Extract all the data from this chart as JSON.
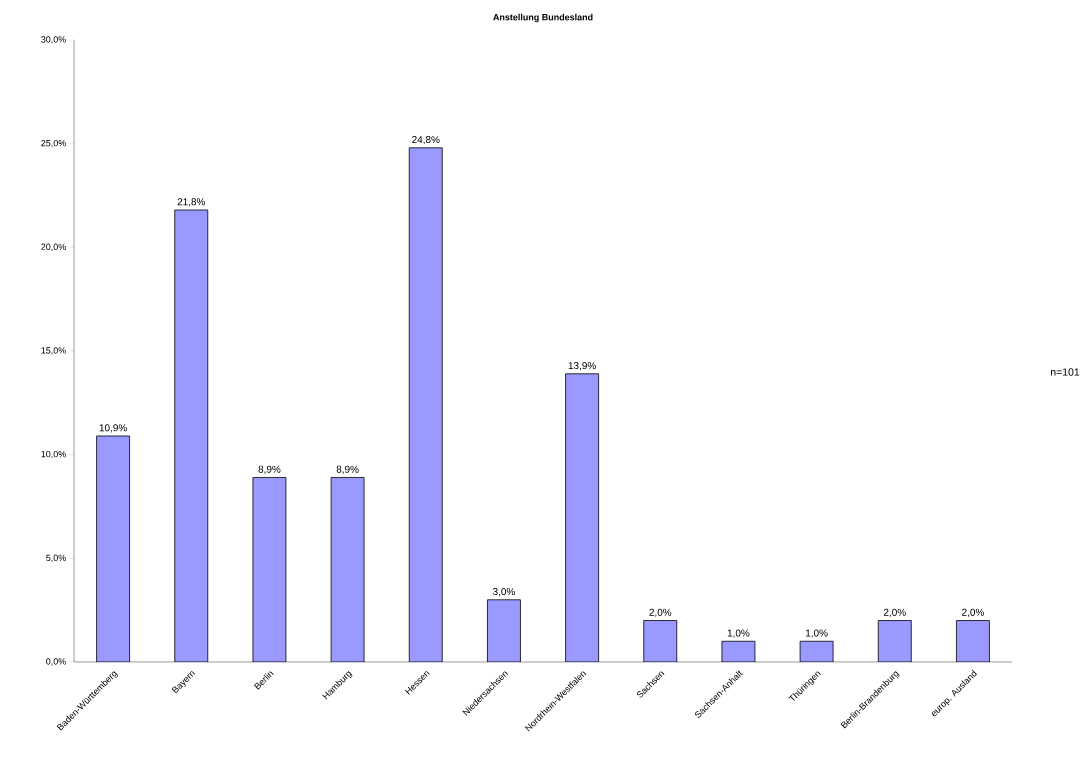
{
  "chart_data": {
    "type": "bar",
    "title": "Anstellung Bundesland",
    "categories": [
      "Baden-Württemberg",
      "Bayern",
      "Berlin",
      "Hamburg",
      "Hessen",
      "Niedersachsen",
      "Nordrhein-Westfalen",
      "Sachsen",
      "Sachsen-Anhalt",
      "Thüringen",
      "Berlin-Brandenburg",
      "europ. Ausland"
    ],
    "values": [
      10.9,
      21.8,
      8.9,
      8.9,
      24.8,
      3.0,
      13.9,
      2.0,
      1.0,
      1.0,
      2.0,
      2.0
    ],
    "value_labels": [
      "10,9%",
      "21,8%",
      "8,9%",
      "8,9%",
      "24,8%",
      "3,0%",
      "13,9%",
      "2,0%",
      "1,0%",
      "1,0%",
      "2,0%",
      "2,0%"
    ],
    "color": "#9999ff",
    "ylim": [
      0,
      30
    ],
    "yticks": [
      {
        "value": 0,
        "label": "0,0%"
      },
      {
        "value": 5,
        "label": "5,0%"
      },
      {
        "value": 10,
        "label": "10,0%"
      },
      {
        "value": 15,
        "label": "15,0%"
      },
      {
        "value": 20,
        "label": "20,0%"
      },
      {
        "value": 25,
        "label": "25,0%"
      },
      {
        "value": 30,
        "label": "30,0%"
      }
    ],
    "annotations": [
      "n=101"
    ]
  }
}
